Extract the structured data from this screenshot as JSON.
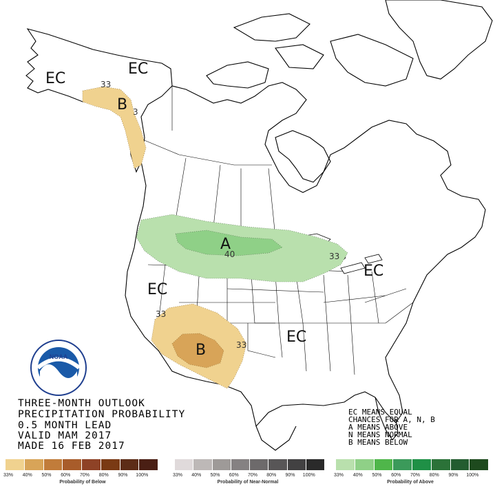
{
  "colors": {
    "below": [
      "#f0d28f",
      "#d8a458",
      "#c17c3a",
      "#a85c2a",
      "#8e4226",
      "#7a3a14",
      "#5c2c17",
      "#4a1f14"
    ],
    "normal": [
      "#e0dadb",
      "#bdb8b7",
      "#9e9a98",
      "#858182",
      "#6d6a6b",
      "#585657",
      "#424142",
      "#2a2a2a"
    ],
    "above": [
      "#b9e0ad",
      "#8fd087",
      "#4fb64a",
      "#3b9a5a",
      "#1f9046",
      "#2b7238",
      "#235c30",
      "#1e4a1e"
    ],
    "land_outline": "#000000",
    "lake_fill": "#ffffff"
  },
  "map_labels": {
    "ec_alaska_west": "EC",
    "ec_alaska_north": "EC",
    "ec_west": "EC",
    "ec_east": "EC",
    "ec_south": "EC",
    "b_alaska": "B",
    "a_north": "A",
    "b_southwest": "B"
  },
  "contour_labels": {
    "alaska_33": "33",
    "alaska_33b": "3",
    "north_40": "40",
    "north_33": "33",
    "sw_33a": "33",
    "sw_33b": "33"
  },
  "title": {
    "line1": "THREE-MONTH OUTLOOK",
    "line2": "PRECIPITATION PROBABILITY",
    "line3": "0.5 MONTH LEAD",
    "line4": "VALID MAM 2017",
    "line5": "MADE 16 FEB 2017"
  },
  "legend_text": {
    "line1": "EC MEANS EQUAL",
    "line2": "CHANCES FOR A, N, B",
    "line3": "A MEANS ABOVE",
    "line4": "N MEANS NORMAL",
    "line5": "B MEANS BELOW"
  },
  "scale": {
    "ticks": [
      "33%",
      "40%",
      "50%",
      "60%",
      "70%",
      "80%",
      "90%",
      "100%"
    ],
    "below_title": "Probability of Below",
    "normal_title": "Probability of Near-Normal",
    "above_title": "Probability of Above"
  },
  "logo": {
    "text": "NOAA",
    "ring_text_top": "NATIONAL OCEANIC AND ATMOSPHERIC ADMINISTRATION",
    "ring_text_bottom": "U.S. DEPARTMENT OF COMMERCE"
  }
}
